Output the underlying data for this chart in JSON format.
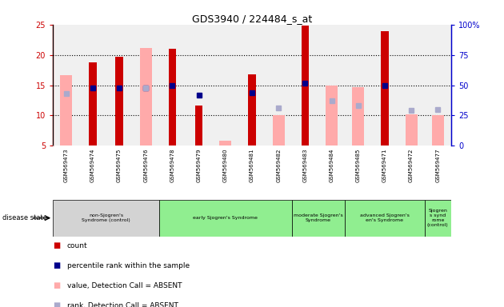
{
  "title": "GDS3940 / 224484_s_at",
  "samples": [
    "GSM569473",
    "GSM569474",
    "GSM569475",
    "GSM569476",
    "GSM569478",
    "GSM569479",
    "GSM569480",
    "GSM569481",
    "GSM569482",
    "GSM569483",
    "GSM569484",
    "GSM569485",
    "GSM569471",
    "GSM569472",
    "GSM569477"
  ],
  "red_bars": [
    null,
    18.8,
    19.7,
    null,
    21.0,
    11.7,
    null,
    16.8,
    null,
    24.8,
    null,
    null,
    23.9,
    null,
    null
  ],
  "pink_bars": [
    16.7,
    null,
    null,
    21.2,
    null,
    null,
    5.8,
    null,
    10.0,
    null,
    14.9,
    14.7,
    null,
    10.2,
    10.1
  ],
  "blue_squares": [
    null,
    14.5,
    14.5,
    14.5,
    15.0,
    13.3,
    null,
    13.7,
    null,
    15.3,
    null,
    null,
    15.0,
    null,
    null
  ],
  "lavender_squares": [
    13.6,
    null,
    null,
    14.5,
    null,
    null,
    null,
    null,
    11.2,
    null,
    12.5,
    11.7,
    null,
    10.8,
    11.0
  ],
  "ylim": [
    5,
    25
  ],
  "y2lim": [
    0,
    100
  ],
  "yticks": [
    5,
    10,
    15,
    20,
    25
  ],
  "y2ticks": [
    0,
    25,
    50,
    75,
    100
  ],
  "disease_groups": [
    {
      "label": "non-Sjogren's\nSyndrome (control)",
      "start": 0,
      "end": 4,
      "color": "#d3d3d3"
    },
    {
      "label": "early Sjogren's Syndrome",
      "start": 4,
      "end": 9,
      "color": "#90ee90"
    },
    {
      "label": "moderate Sjogren's\nSyndrome",
      "start": 9,
      "end": 11,
      "color": "#90ee90"
    },
    {
      "label": "advanced Sjogren's\nen's Syndrome",
      "start": 11,
      "end": 14,
      "color": "#90ee90"
    },
    {
      "label": "Sjogren\ns synd\nrome\n(control)",
      "start": 14,
      "end": 15,
      "color": "#90ee90"
    }
  ],
  "red_color": "#cc0000",
  "pink_color": "#ffaaaa",
  "blue_color": "#00008b",
  "lavender_color": "#aaaacc",
  "plot_bg": "#f0f0f0",
  "sample_bg": "#c8c8c8",
  "grid_dotted_ticks": [
    10,
    15,
    20
  ],
  "legend_items": [
    {
      "color": "#cc0000",
      "label": "count"
    },
    {
      "color": "#00008b",
      "label": "percentile rank within the sample"
    },
    {
      "color": "#ffaaaa",
      "label": "value, Detection Call = ABSENT"
    },
    {
      "color": "#aaaacc",
      "label": "rank, Detection Call = ABSENT"
    }
  ]
}
